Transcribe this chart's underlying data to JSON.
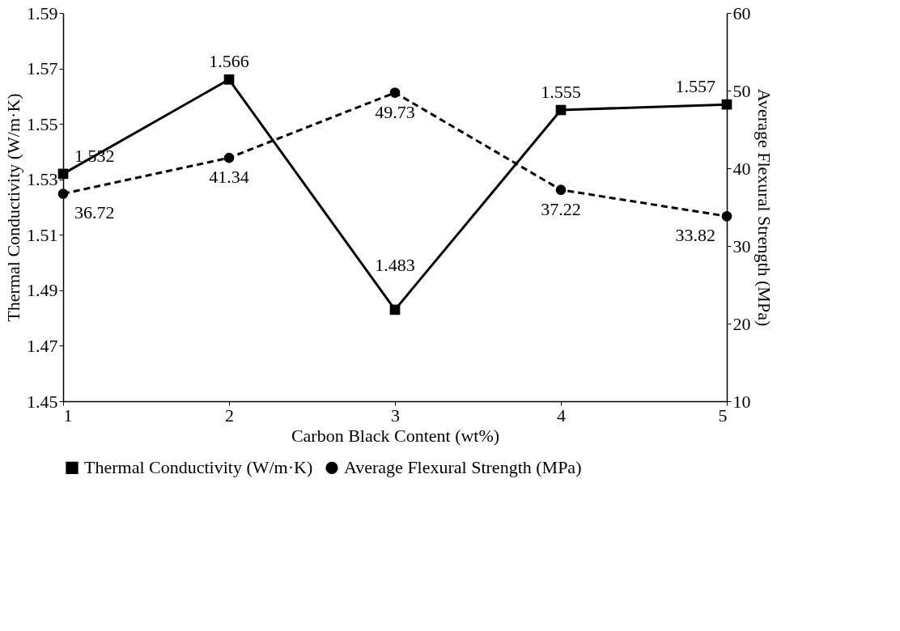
{
  "chart_data": {
    "type": "line",
    "xlabel": "Carbon Black Content (wt%)",
    "ylabel": "Thermal Conductivity (W/m·K)",
    "y2label": "Average Flexural Strength (MPa)",
    "x": [
      1,
      2,
      3,
      4,
      5
    ],
    "xlim": [
      1,
      5
    ],
    "xticks": [
      1,
      2,
      3,
      4,
      5
    ],
    "ylim": [
      1.45,
      1.59
    ],
    "yticks": [
      1.45,
      1.47,
      1.49,
      1.51,
      1.53,
      1.55,
      1.57,
      1.59
    ],
    "y2lim": [
      10,
      60
    ],
    "y2ticks": [
      10,
      20,
      30,
      40,
      50,
      60
    ],
    "series": [
      {
        "name": "Thermal Conductivity (W/m·K)",
        "color": "#000000",
        "values": [
          1.532,
          1.566,
          1.483,
          1.555,
          1.557
        ],
        "marker": "square",
        "line_style": "solid"
      },
      {
        "name": "Average Flexural Strength (MPa)",
        "color": "#000000",
        "values": [
          36.72,
          41.34,
          49.73,
          37.22,
          33.82
        ],
        "axis": "y2",
        "marker": "circle",
        "line_style": "dashed"
      }
    ],
    "data_labels": true,
    "legend": "bottom",
    "grid": false
  }
}
